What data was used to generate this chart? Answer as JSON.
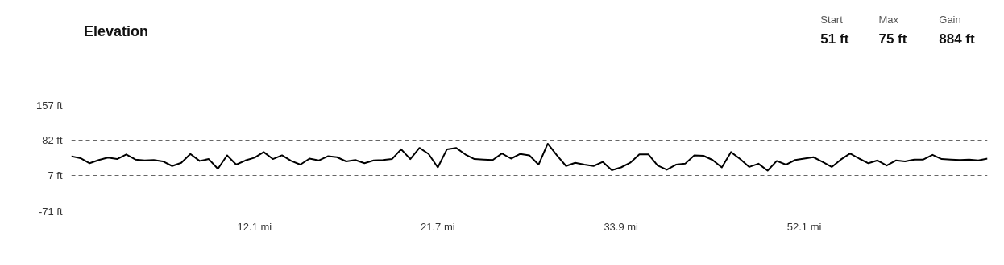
{
  "chart_data": {
    "type": "line",
    "title": "Elevation",
    "annotations": [
      "Start",
      "51 ft",
      "Max",
      "75 ft",
      "Gain",
      "884 ft"
    ],
    "categories": [
      null,
      null,
      null,
      null,
      null,
      null,
      null,
      null,
      null,
      null,
      null,
      null,
      null,
      null,
      null,
      null,
      null,
      null,
      null,
      null,
      "12.1 mi",
      null,
      null,
      null,
      null,
      null,
      null,
      null,
      null,
      null,
      null,
      null,
      null,
      null,
      null,
      null,
      null,
      null,
      null,
      null,
      "21.7 mi",
      null,
      null,
      null,
      null,
      null,
      null,
      null,
      null,
      null,
      null,
      null,
      null,
      null,
      null,
      null,
      null,
      null,
      null,
      null,
      "33.9 mi",
      null,
      null,
      null,
      null,
      null,
      null,
      null,
      null,
      null,
      null,
      null,
      null,
      null,
      null,
      null,
      null,
      null,
      null,
      null,
      "52.1 mi",
      null,
      null,
      null,
      null,
      null,
      null,
      null,
      null,
      null,
      null,
      null,
      null,
      null,
      null,
      null,
      null,
      null,
      null,
      null,
      null
    ],
    "series": [
      {
        "color": "#000000",
        "values": [
          48,
          44,
          33,
          40,
          45,
          42,
          52,
          41,
          39,
          40,
          37,
          27,
          34,
          53,
          38,
          42,
          21,
          50,
          30,
          39,
          45,
          57,
          42,
          50,
          38,
          30,
          43,
          39,
          48,
          46,
          37,
          40,
          33,
          39,
          40,
          42,
          63,
          42,
          66,
          53,
          24,
          63,
          66,
          52,
          42,
          41,
          40,
          54,
          43,
          53,
          50,
          30,
          75,
          50,
          27,
          34,
          30,
          27,
          36,
          18,
          24,
          34,
          52,
          52,
          28,
          19,
          30,
          32,
          50,
          49,
          40,
          24,
          57,
          42,
          25,
          32,
          17,
          38,
          30,
          40,
          43,
          46,
          36,
          25,
          41,
          54,
          43,
          33,
          39,
          28,
          39,
          37,
          41,
          41,
          51,
          42,
          41,
          40,
          41,
          39,
          43
        ]
      }
    ],
    "ylim": [
      -71,
      157
    ],
    "yticks": [
      {
        "value": -71,
        "label": "-71 ft"
      },
      {
        "value": 7,
        "label": "7 ft"
      },
      {
        "value": 82,
        "label": "82 ft"
      },
      {
        "value": 157,
        "label": "157 ft"
      }
    ],
    "grid": "y",
    "line_style": "solid"
  }
}
